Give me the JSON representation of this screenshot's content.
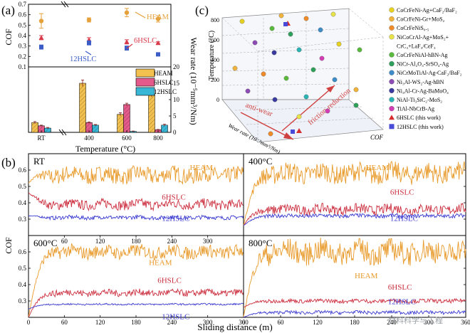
{
  "panel_a": {
    "label": "(a)",
    "ylabel_top": "COF",
    "ylabel_right": "Wear rate (10⁻⁵mm³/Nm)",
    "xlabel": "Temperature (°C)",
    "ann_heam": "HEAM",
    "ann_6hslc": "6HSLC",
    "ann_12hslc": "12HSLC",
    "legend": [
      "HEAM",
      "6HSLC",
      "12HSLC"
    ]
  },
  "panel_b": {
    "label": "(b)",
    "ylabel": "COF",
    "xlabel": "Sliding distance (m)",
    "sub_titles": [
      "RT",
      "400°C",
      "600°C",
      "800°C"
    ],
    "series_labels": [
      "HEAM",
      "6HSLC",
      "12HSLC"
    ]
  },
  "panel_c": {
    "label": "(c)",
    "zlabel": "Temperature (°C)",
    "xlabel": "Wear rate (10⁻⁵mm³/Nm)",
    "ylabel": "COF",
    "ann_wear": "anti-wear",
    "ann_friction": "friction-reduction",
    "z_ticks": [
      "0",
      "200",
      "400",
      "600",
      "800"
    ],
    "legend": [
      {
        "label": "CoCrFeNi-Ag+CaF₂/BaF₂",
        "color": "#e6d21f"
      },
      {
        "label": "CoCrFeNi-Gr+MoS₂",
        "color": "#f0b43c"
      },
      {
        "label": "CoCrFeNiS₀.₅",
        "color": "#f08c28"
      },
      {
        "label": "NiCoCrAl-Ag+MoS₂+",
        "color": "#e8e24a"
      },
      {
        "label": "CrC₃+LaF₃/CeF₃",
        "color": "#ffffff"
      },
      {
        "label": "CoCrFeNiAl-hBN-Ag",
        "color": "#5aba3c"
      },
      {
        "label": "NiCr-Al₂O₃-SrSO₄-Ag",
        "color": "#2fa05a"
      },
      {
        "label": "NiCrMoTiAl-Ag-CaF₂/BaF₂",
        "color": "#3c8cc8"
      },
      {
        "label": "Ni₃Al-WS₂-Ag-hBN",
        "color": "#8c4cb4"
      },
      {
        "label": "Ni₃Al-Cr-Ag-BaMoO₄",
        "color": "#3a3aa0"
      },
      {
        "label": "NiAl-Ti₃SiC₂-MoS₂",
        "color": "#2ab4b4"
      },
      {
        "label": "TiAl-NbCrB-Ag",
        "color": "#d23cb4"
      },
      {
        "label": "6HSLC (this work)",
        "color": "#d62e2e"
      },
      {
        "label": "12HSLC (this work)",
        "color": "#4a4ad8"
      }
    ]
  },
  "watermark": "材料科学与工程",
  "chart_data": [
    {
      "type": "scatter",
      "categories": [
        "RT",
        "400",
        "600",
        "800"
      ],
      "y_axis_labels": [
        "0.1",
        "0.2",
        "0.3",
        "0.4",
        "0.5",
        "0.6",
        "0.7"
      ],
      "ylim": [
        0.1,
        0.7
      ],
      "series": [
        {
          "name": "HEAM",
          "values": [
            0.54,
            0.55,
            0.62,
            0.56
          ],
          "err": [
            0.07,
            0.02,
            0.04,
            0.03
          ],
          "color": "#e5a13c"
        },
        {
          "name": "6HSLC",
          "values": [
            0.38,
            0.36,
            0.34,
            0.33
          ],
          "err": [
            0.02,
            0.02,
            0.02,
            0.01
          ],
          "color": "#d93a4a"
        },
        {
          "name": "12HSLC",
          "values": [
            0.29,
            0.33,
            0.28,
            0.22
          ],
          "err": [
            0.02,
            0.02,
            0.02,
            0.01
          ],
          "color": "#3c5cc8"
        }
      ]
    },
    {
      "type": "bar",
      "categories": [
        "RT",
        "400",
        "600",
        "800"
      ],
      "x_tick_labels": [
        "RT",
        "400",
        "600",
        "800"
      ],
      "y_tick_labels": [
        "0",
        "5",
        "10",
        "15",
        "20"
      ],
      "ylim": [
        0,
        20
      ],
      "series": [
        {
          "name": "HEAM",
          "values": [
            3.0,
            15.0,
            5.5,
            11.8
          ],
          "err": [
            0.3,
            1.0,
            0.5,
            1.0
          ],
          "color": "#f2c04e"
        },
        {
          "name": "6HSLC",
          "values": [
            2.0,
            3.0,
            8.5,
            0.8
          ],
          "err": [
            0.2,
            0.2,
            0.4,
            0.1
          ],
          "color": "#e45a8a"
        },
        {
          "name": "12HSLC",
          "values": [
            1.3,
            2.2,
            0.3,
            2.2
          ],
          "err": [
            0.2,
            0.2,
            0.1,
            0.3
          ],
          "color": "#37b6d6"
        }
      ]
    },
    {
      "type": "line",
      "x_tick_labels": [
        "0",
        "60",
        "120",
        "180",
        "240",
        "300",
        "360"
      ],
      "y_tick_labels": [
        "0.2",
        "0.3",
        "0.4",
        "0.5",
        "0.6",
        "0.7"
      ],
      "xlim": [
        0,
        360
      ],
      "ylim": [
        0.2,
        0.7
      ],
      "panels": [
        {
          "title": "RT",
          "series": [
            {
              "name": "HEAM",
              "mean": 0.57,
              "amp": 0.05,
              "start": 0.52,
              "color": "#e89a2a"
            },
            {
              "name": "6HSLC",
              "mean": 0.39,
              "amp": 0.03,
              "start": 0.46,
              "color": "#cc2f3f"
            },
            {
              "name": "12HSLC",
              "mean": 0.31,
              "amp": 0.012,
              "start": 0.32,
              "color": "#3a3ad0"
            }
          ]
        },
        {
          "title": "400°C",
          "series": [
            {
              "name": "HEAM",
              "mean": 0.58,
              "amp": 0.06,
              "start": 0.26,
              "color": "#e89a2a"
            },
            {
              "name": "6HSLC",
              "mean": 0.36,
              "amp": 0.03,
              "start": 0.26,
              "color": "#cc2f3f"
            },
            {
              "name": "12HSLC",
              "mean": 0.32,
              "amp": 0.012,
              "start": 0.26,
              "color": "#3a3ad0"
            }
          ]
        },
        {
          "title": "600°C",
          "series": [
            {
              "name": "HEAM",
              "mean": 0.6,
              "amp": 0.04,
              "start": 0.2,
              "color": "#e89a2a"
            },
            {
              "name": "6HSLC",
              "mean": 0.35,
              "amp": 0.02,
              "start": 0.2,
              "color": "#cc2f3f"
            },
            {
              "name": "12HSLC",
              "mean": 0.28,
              "amp": 0.005,
              "start": 0.25,
              "color": "#3a3ad0"
            }
          ]
        },
        {
          "title": "800°C",
          "series": [
            {
              "name": "HEAM",
              "mean": 0.6,
              "amp": 0.07,
              "start": 0.2,
              "color": "#e89a2a"
            },
            {
              "name": "6HSLC",
              "mean": 0.3,
              "amp": 0.012,
              "start": 0.26,
              "color": "#cc2f3f"
            },
            {
              "name": "12HSLC",
              "mean": 0.23,
              "amp": 0.01,
              "start": 0.2,
              "color": "#3a3ad0"
            }
          ]
        }
      ]
    }
  ]
}
